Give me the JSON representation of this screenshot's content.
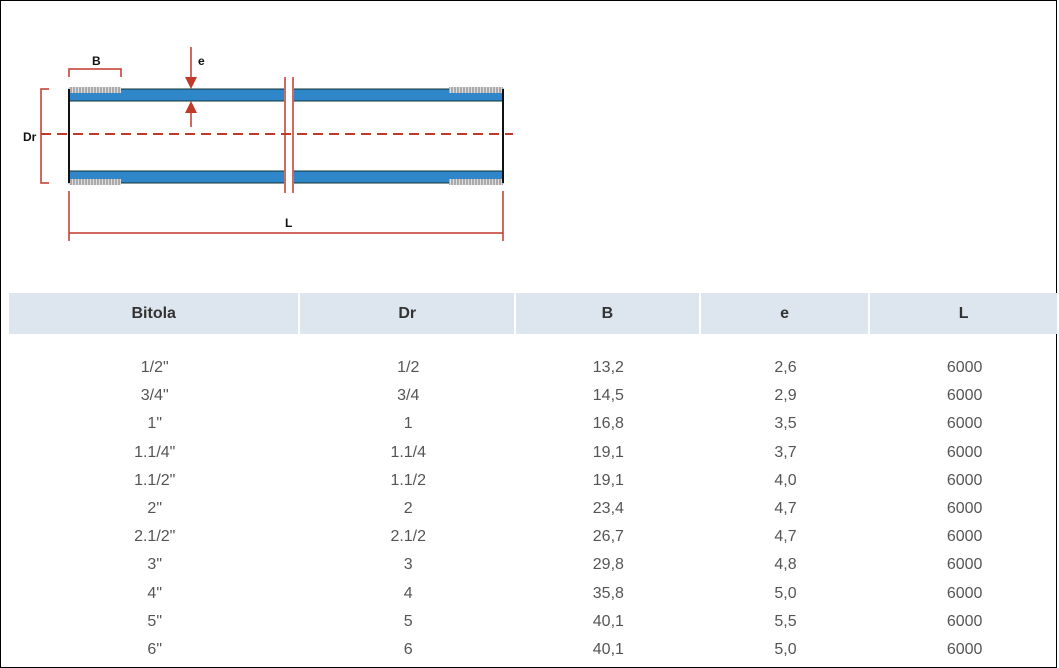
{
  "diagram": {
    "labels": {
      "B": "B",
      "e": "e",
      "Dr": "Dr",
      "L": "L"
    }
  },
  "table": {
    "headers": [
      "Bitola",
      "Dr",
      "B",
      "e",
      "L"
    ],
    "rows": [
      [
        "1/2\"",
        "1/2",
        "13,2",
        "2,6",
        "6000"
      ],
      [
        "3/4\"",
        "3/4",
        "14,5",
        "2,9",
        "6000"
      ],
      [
        "1\"",
        "1",
        "16,8",
        "3,5",
        "6000"
      ],
      [
        "1.1/4\"",
        "1.1/4",
        "19,1",
        "3,7",
        "6000"
      ],
      [
        "1.1/2\"",
        "1.1/2",
        "19,1",
        "4,0",
        "6000"
      ],
      [
        "2\"",
        "2",
        "23,4",
        "4,7",
        "6000"
      ],
      [
        "2.1/2\"",
        "2.1/2",
        "26,7",
        "4,7",
        "6000"
      ],
      [
        "3\"",
        "3",
        "29,8",
        "4,8",
        "6000"
      ],
      [
        "4\"",
        "4",
        "35,8",
        "5,0",
        "6000"
      ],
      [
        "5\"",
        "5",
        "40,1",
        "5,5",
        "6000"
      ],
      [
        "6\"",
        "6",
        "40,1",
        "5,0",
        "6000"
      ]
    ]
  }
}
